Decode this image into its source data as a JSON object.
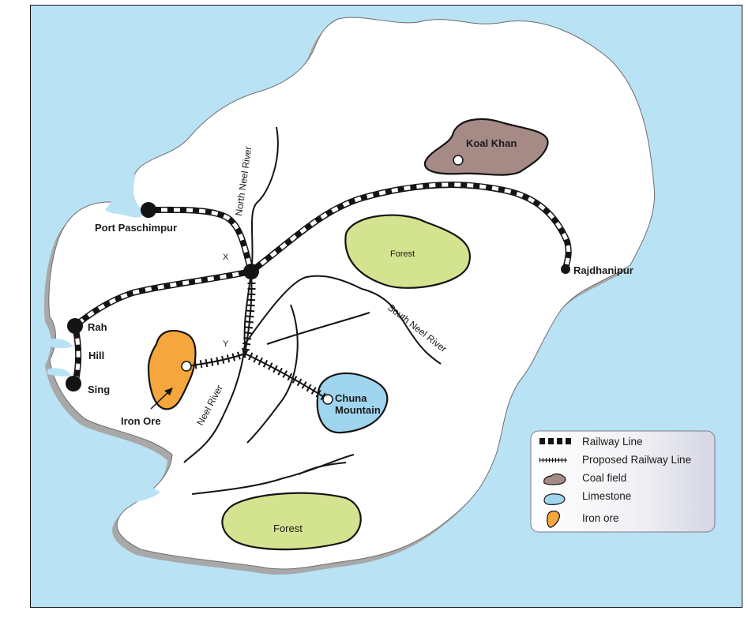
{
  "colors": {
    "sea": "#b9e2f5",
    "land": "#ffffff",
    "land_shadow": "#a8a8a8",
    "forest": "#d3e38f",
    "coal": "#a58a86",
    "limestone": "#9fd5ee",
    "iron": "#f5a63c",
    "line": "#141414"
  },
  "places": {
    "port_paschimpur": "Port Paschimpur",
    "rajdhanipur": "Rajdhanipur",
    "rah": "Rah",
    "hill": "Hill",
    "sing": "Sing",
    "junction_x": "X",
    "junction_y": "Y"
  },
  "resources": {
    "koal_khan": "Koal Khan",
    "chuna_line1": "Chuna",
    "chuna_line2": "Mountain",
    "iron_ore": "Iron Ore",
    "forest_north": "Forest",
    "forest_south": "Forest"
  },
  "rivers": {
    "north": "North Neel River",
    "south": "South Neel River",
    "neel": "Neel River"
  },
  "legend": {
    "railway": "Railway Line",
    "proposed": "Proposed Railway Line",
    "coal": "Coal field",
    "limestone": "Limestone",
    "iron": "Iron ore"
  }
}
